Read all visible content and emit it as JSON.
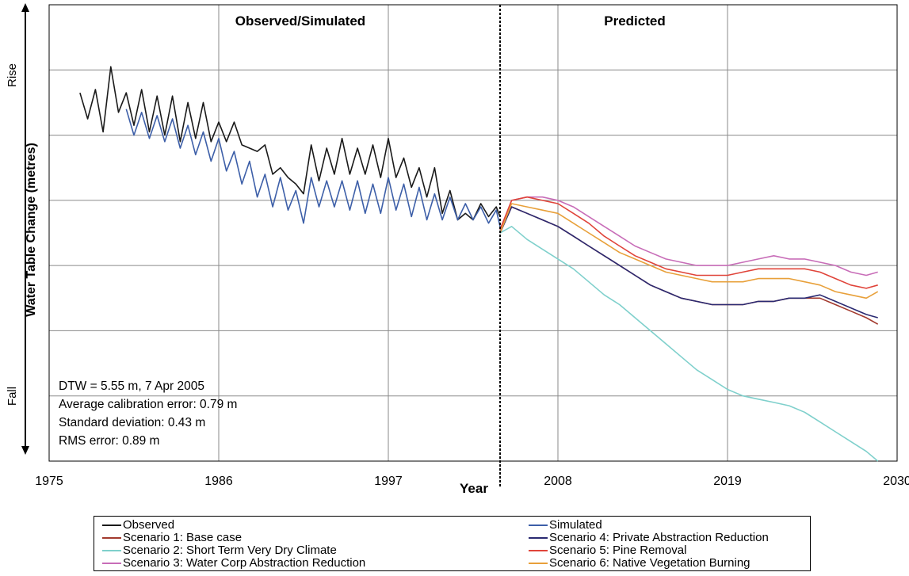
{
  "chart_data": {
    "type": "line",
    "xlabel": "Year",
    "ylabel": "Water Table Change (metres)",
    "y_top_label": "Rise",
    "y_bottom_label": "Fall",
    "xlim": [
      1975,
      2030
    ],
    "x_ticks": [
      "1975",
      "1986",
      "1997",
      "2008",
      "2019",
      "2030"
    ],
    "ylim": [
      -7,
      0
    ],
    "grid": true,
    "sections": [
      {
        "label": "Observed/Simulated"
      },
      {
        "label": "Predicted"
      }
    ],
    "divider_year": 2004.25,
    "annotations": [
      "DTW = 5.55 m, 7 Apr 2005",
      "Average calibration error:  0.79 m",
      "Standard deviation:  0.43 m",
      "RMS error:  0.89 m"
    ],
    "legend_position": "bottom",
    "series": [
      {
        "name": "Observed",
        "color": "#1a1a1a",
        "x": [
          1977,
          1977.5,
          1978,
          1978.5,
          1979,
          1979.5,
          1980,
          1980.5,
          1981,
          1981.5,
          1982,
          1982.5,
          1983,
          1983.5,
          1984,
          1984.5,
          1985,
          1985.5,
          1986,
          1986.5,
          1987,
          1987.5,
          1988,
          1988.5,
          1989,
          1989.5,
          1990,
          1990.5,
          1991,
          1991.5,
          1992,
          1992.5,
          1993,
          1993.5,
          1994,
          1994.5,
          1995,
          1995.5,
          1996,
          1996.5,
          1997,
          1997.5,
          1998,
          1998.5,
          1999,
          1999.5,
          2000,
          2000.5,
          2001,
          2001.5,
          2002,
          2002.5,
          2003,
          2003.5,
          2004,
          2004.25
        ],
        "y": [
          -1.35,
          -1.75,
          -1.3,
          -1.95,
          -0.95,
          -1.65,
          -1.35,
          -1.85,
          -1.3,
          -1.95,
          -1.4,
          -2.0,
          -1.4,
          -2.1,
          -1.5,
          -2.05,
          -1.5,
          -2.1,
          -1.8,
          -2.1,
          -1.8,
          -2.15,
          -2.2,
          -2.25,
          -2.15,
          -2.6,
          -2.5,
          -2.65,
          -2.75,
          -2.9,
          -2.15,
          -2.7,
          -2.2,
          -2.6,
          -2.05,
          -2.6,
          -2.2,
          -2.6,
          -2.15,
          -2.65,
          -2.05,
          -2.65,
          -2.35,
          -2.8,
          -2.5,
          -2.95,
          -2.5,
          -3.2,
          -2.85,
          -3.3,
          -3.2,
          -3.3,
          -3.05,
          -3.25,
          -3.1,
          -3.25
        ]
      },
      {
        "name": "Simulated",
        "color": "#3d5fa8",
        "x": [
          1980,
          1980.5,
          1981,
          1981.5,
          1982,
          1982.5,
          1983,
          1983.5,
          1984,
          1984.5,
          1985,
          1985.5,
          1986,
          1986.5,
          1987,
          1987.5,
          1988,
          1988.5,
          1989,
          1989.5,
          1990,
          1990.5,
          1991,
          1991.5,
          1992,
          1992.5,
          1993,
          1993.5,
          1994,
          1994.5,
          1995,
          1995.5,
          1996,
          1996.5,
          1997,
          1997.5,
          1998,
          1998.5,
          1999,
          1999.5,
          2000,
          2000.5,
          2001,
          2001.5,
          2002,
          2002.5,
          2003,
          2003.5,
          2004,
          2004.25
        ],
        "y": [
          -1.6,
          -2.0,
          -1.65,
          -2.05,
          -1.7,
          -2.1,
          -1.75,
          -2.2,
          -1.85,
          -2.3,
          -1.95,
          -2.4,
          -2.05,
          -2.55,
          -2.25,
          -2.75,
          -2.4,
          -2.95,
          -2.6,
          -3.1,
          -2.65,
          -3.15,
          -2.85,
          -3.35,
          -2.65,
          -3.1,
          -2.7,
          -3.1,
          -2.7,
          -3.15,
          -2.7,
          -3.2,
          -2.75,
          -3.2,
          -2.65,
          -3.15,
          -2.75,
          -3.25,
          -2.8,
          -3.3,
          -2.9,
          -3.3,
          -2.95,
          -3.3,
          -3.05,
          -3.3,
          -3.1,
          -3.35,
          -3.15,
          -3.4
        ]
      },
      {
        "name": "Scenario 1: Base case",
        "color": "#a33a2e",
        "x": [
          2004.25,
          2005,
          2006,
          2007,
          2008,
          2009,
          2010,
          2011,
          2012,
          2013,
          2014,
          2015,
          2016,
          2017,
          2018,
          2019,
          2020,
          2021,
          2022,
          2023,
          2024,
          2025,
          2026,
          2027,
          2028,
          2028.75
        ],
        "y": [
          -3.5,
          -3.1,
          -3.2,
          -3.3,
          -3.4,
          -3.55,
          -3.7,
          -3.85,
          -4.0,
          -4.15,
          -4.3,
          -4.4,
          -4.5,
          -4.55,
          -4.6,
          -4.6,
          -4.6,
          -4.55,
          -4.55,
          -4.5,
          -4.5,
          -4.5,
          -4.6,
          -4.7,
          -4.8,
          -4.9
        ]
      },
      {
        "name": "Scenario 2: Short Term Very Dry Climate",
        "color": "#7fd0cc",
        "x": [
          2004.25,
          2005,
          2006,
          2007,
          2008,
          2009,
          2010,
          2011,
          2012,
          2013,
          2014,
          2015,
          2016,
          2017,
          2018,
          2019,
          2020,
          2021,
          2022,
          2023,
          2024,
          2025,
          2026,
          2027,
          2028,
          2028.75
        ],
        "y": [
          -3.5,
          -3.4,
          -3.6,
          -3.75,
          -3.9,
          -4.05,
          -4.25,
          -4.45,
          -4.6,
          -4.8,
          -5.0,
          -5.2,
          -5.4,
          -5.6,
          -5.75,
          -5.9,
          -6.0,
          -6.05,
          -6.1,
          -6.15,
          -6.25,
          -6.4,
          -6.55,
          -6.7,
          -6.85,
          -7.0
        ]
      },
      {
        "name": "Scenario 3: Water Corp Abstraction Reduction",
        "color": "#c86db8",
        "x": [
          2004.25,
          2005,
          2006,
          2007,
          2008,
          2009,
          2010,
          2011,
          2012,
          2013,
          2014,
          2015,
          2016,
          2017,
          2018,
          2019,
          2020,
          2021,
          2022,
          2023,
          2024,
          2025,
          2026,
          2027,
          2028,
          2028.75
        ],
        "y": [
          -3.45,
          -3.0,
          -2.95,
          -2.95,
          -3.0,
          -3.1,
          -3.25,
          -3.4,
          -3.55,
          -3.7,
          -3.8,
          -3.9,
          -3.95,
          -4.0,
          -4.0,
          -4.0,
          -3.95,
          -3.9,
          -3.85,
          -3.9,
          -3.9,
          -3.95,
          -4.0,
          -4.1,
          -4.15,
          -4.1
        ]
      },
      {
        "name": "Scenario 4: Private Abstraction Reduction",
        "color": "#2a2a72",
        "x": [
          2004.25,
          2005,
          2006,
          2007,
          2008,
          2009,
          2010,
          2011,
          2012,
          2013,
          2014,
          2015,
          2016,
          2017,
          2018,
          2019,
          2020,
          2021,
          2022,
          2023,
          2024,
          2025,
          2026,
          2027,
          2028,
          2028.75
        ],
        "y": [
          -3.5,
          -3.1,
          -3.2,
          -3.3,
          -3.4,
          -3.55,
          -3.7,
          -3.85,
          -4.0,
          -4.15,
          -4.3,
          -4.4,
          -4.5,
          -4.55,
          -4.6,
          -4.6,
          -4.6,
          -4.55,
          -4.55,
          -4.5,
          -4.5,
          -4.45,
          -4.55,
          -4.65,
          -4.75,
          -4.8
        ]
      },
      {
        "name": "Scenario 5: Pine Removal",
        "color": "#e0443a",
        "x": [
          2004.25,
          2005,
          2006,
          2007,
          2008,
          2009,
          2010,
          2011,
          2012,
          2013,
          2014,
          2015,
          2016,
          2017,
          2018,
          2019,
          2020,
          2021,
          2022,
          2023,
          2024,
          2025,
          2026,
          2027,
          2028,
          2028.75
        ],
        "y": [
          -3.45,
          -3.0,
          -2.95,
          -3.0,
          -3.05,
          -3.2,
          -3.35,
          -3.55,
          -3.7,
          -3.85,
          -3.95,
          -4.05,
          -4.1,
          -4.15,
          -4.15,
          -4.15,
          -4.1,
          -4.05,
          -4.05,
          -4.05,
          -4.05,
          -4.1,
          -4.2,
          -4.3,
          -4.35,
          -4.3
        ]
      },
      {
        "name": "Scenario 6: Native Vegetation Burning",
        "color": "#e8a03a",
        "x": [
          2004.25,
          2005,
          2006,
          2007,
          2008,
          2009,
          2010,
          2011,
          2012,
          2013,
          2014,
          2015,
          2016,
          2017,
          2018,
          2019,
          2020,
          2021,
          2022,
          2023,
          2024,
          2025,
          2026,
          2027,
          2028,
          2028.75
        ],
        "y": [
          -3.5,
          -3.05,
          -3.1,
          -3.15,
          -3.2,
          -3.35,
          -3.5,
          -3.65,
          -3.8,
          -3.9,
          -4.0,
          -4.1,
          -4.15,
          -4.2,
          -4.25,
          -4.25,
          -4.25,
          -4.2,
          -4.2,
          -4.2,
          -4.25,
          -4.3,
          -4.4,
          -4.45,
          -4.5,
          -4.4
        ]
      }
    ],
    "legend_rows": [
      [
        "Observed",
        "Simulated"
      ],
      [
        "Scenario 1: Base case",
        "Scenario 4: Private Abstraction Reduction"
      ],
      [
        "Scenario 2: Short Term Very Dry Climate",
        "Scenario 5: Pine Removal"
      ],
      [
        "Scenario 3: Water Corp Abstraction Reduction",
        "Scenario 6: Native Vegetation Burning"
      ]
    ]
  }
}
